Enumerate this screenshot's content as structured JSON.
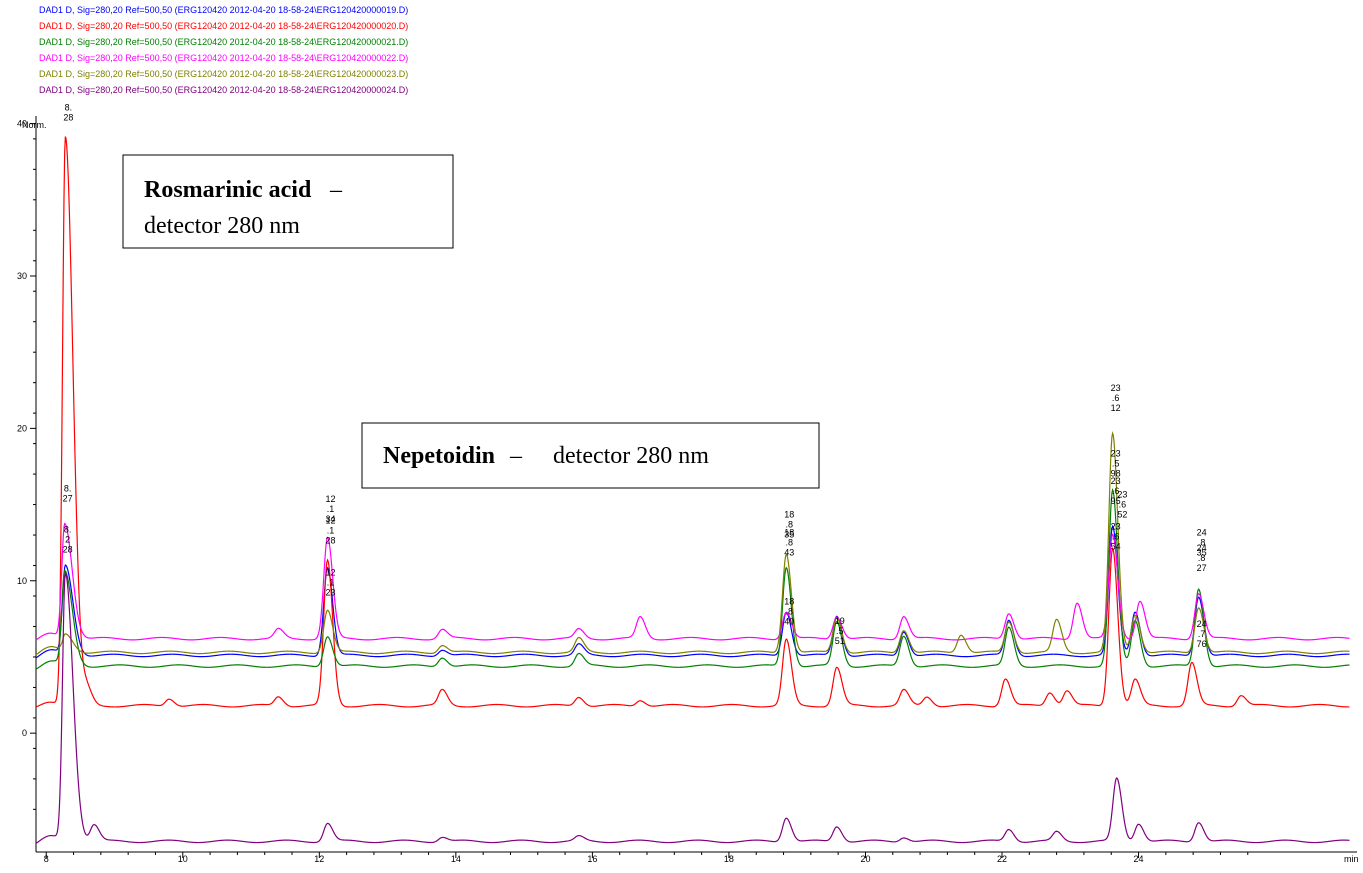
{
  "chart_data": {
    "type": "line",
    "xlabel": "min",
    "ylabel": "Norm.",
    "xlim": [
      7.85,
      27.2
    ],
    "ylim": [
      -7.8,
      40.5
    ],
    "x_ticks": [
      8,
      10,
      12,
      14,
      16,
      18,
      20,
      22,
      24
    ],
    "y_ticks": [
      0,
      10,
      20,
      30,
      40
    ],
    "grid": false,
    "legend_position": "top-left",
    "series": [
      {
        "name": "DAD1 D, Sig=280,20 Ref=500,50 (ERG120420 2012-04-20 18-58-24\\ERG120420000019.D)",
        "color": "#0000ff",
        "baseline": 5.1,
        "peaks": [
          [
            8.28,
            11
          ],
          [
            12.12,
            10.9
          ],
          [
            13.8,
            5.5
          ],
          [
            15.8,
            5.8
          ],
          [
            18.84,
            8.0
          ],
          [
            19.58,
            7.7
          ],
          [
            20.56,
            6.7
          ],
          [
            22.1,
            7.4
          ],
          [
            23.62,
            13.5
          ],
          [
            23.95,
            8.0
          ],
          [
            24.88,
            9.0
          ]
        ]
      },
      {
        "name": "DAD1 D, Sig=280,20 Ref=500,50 (ERG120420 2012-04-20 18-58-24\\ERG120420000020.D)",
        "color": "#ff0000",
        "baseline": 1.8,
        "peaks": [
          [
            8.28,
            39.2
          ],
          [
            8.6,
            2.8
          ],
          [
            9.8,
            2.3
          ],
          [
            11.4,
            2.4
          ],
          [
            12.12,
            11.3
          ],
          [
            13.8,
            2.8
          ],
          [
            15.8,
            2.4
          ],
          [
            16.7,
            2.2
          ],
          [
            18.84,
            6.1
          ],
          [
            19.58,
            4.3
          ],
          [
            20.56,
            2.8
          ],
          [
            20.9,
            2.4
          ],
          [
            22.05,
            3.6
          ],
          [
            22.7,
            2.7
          ],
          [
            22.95,
            2.8
          ],
          [
            23.62,
            12.2
          ],
          [
            23.95,
            3.5
          ],
          [
            24.78,
            4.6
          ],
          [
            25.5,
            2.5
          ]
        ]
      },
      {
        "name": "DAD1 D, Sig=280,20 Ref=500,50 (ERG120420 2012-04-20 18-58-24\\ERG120420000021.D)",
        "color": "#008000",
        "baseline": 4.4,
        "peaks": [
          [
            8.27,
            10.6
          ],
          [
            12.12,
            6.4
          ],
          [
            13.8,
            5.0
          ],
          [
            15.8,
            5.2
          ],
          [
            18.84,
            10.9
          ],
          [
            19.58,
            7.3
          ],
          [
            20.56,
            6.4
          ],
          [
            22.1,
            6.9
          ],
          [
            23.62,
            15.9
          ],
          [
            23.95,
            7.4
          ],
          [
            24.88,
            9.5
          ]
        ]
      },
      {
        "name": "DAD1 D, Sig=280,20 Ref=500,50 (ERG120420 2012-04-20 18-58-24\\ERG120420000022.D)",
        "color": "#ff00ff",
        "baseline": 6.2,
        "peaks": [
          [
            8.27,
            13.8
          ],
          [
            11.4,
            6.8
          ],
          [
            12.12,
            12.8
          ],
          [
            13.8,
            6.8
          ],
          [
            15.8,
            6.8
          ],
          [
            16.7,
            7.6
          ],
          [
            18.84,
            8.0
          ],
          [
            19.58,
            7.7
          ],
          [
            20.56,
            7.7
          ],
          [
            22.1,
            7.9
          ],
          [
            23.1,
            8.6
          ],
          [
            23.62,
            13.0
          ],
          [
            24.02,
            8.7
          ],
          [
            24.88,
            9.2
          ]
        ]
      },
      {
        "name": "DAD1 D, Sig=280,20 Ref=500,50 (ERG120420 2012-04-20 18-58-24\\ERG120420000023.D)",
        "color": "#808000",
        "baseline": 5.3,
        "peaks": [
          [
            8.28,
            6.5
          ],
          [
            12.12,
            8.1
          ],
          [
            13.8,
            5.8
          ],
          [
            15.8,
            6.2
          ],
          [
            18.84,
            11.8
          ],
          [
            19.58,
            7.6
          ],
          [
            20.56,
            6.8
          ],
          [
            21.4,
            6.5
          ],
          [
            22.1,
            7.3
          ],
          [
            22.8,
            7.4
          ],
          [
            23.62,
            19.6
          ],
          [
            23.95,
            7.8
          ],
          [
            24.88,
            8.3
          ]
        ]
      },
      {
        "name": "DAD1 D, Sig=280,20 Ref=500,50 (ERG120420 2012-04-20 18-58-24\\ERG120420000024.D)",
        "color": "#800080",
        "baseline": -7.1,
        "peaks": [
          [
            8.28,
            10.5
          ],
          [
            8.7,
            -6.0
          ],
          [
            12.12,
            -5.9
          ],
          [
            13.8,
            -6.8
          ],
          [
            15.8,
            -6.8
          ],
          [
            18.84,
            -5.5
          ],
          [
            19.58,
            -6.1
          ],
          [
            20.56,
            -6.8
          ],
          [
            22.1,
            -6.3
          ],
          [
            22.8,
            -6.5
          ],
          [
            23.68,
            -3.0
          ],
          [
            24.0,
            -5.9
          ],
          [
            24.88,
            -5.8
          ]
        ]
      }
    ],
    "peak_labels": [
      {
        "x": 8.28,
        "y": 40.2,
        "color": "#800000",
        "text": "8.\n28"
      },
      {
        "x": 8.27,
        "y": 15.2,
        "color": "#000000",
        "text": "8.\n27"
      },
      {
        "x": 8.27,
        "y": 12.5,
        "color": "#000000",
        "text": "8.\n2\n28"
      },
      {
        "x": 12.12,
        "y": 14.5,
        "color": "#000000",
        "text": "12\n.1\n34"
      },
      {
        "x": 12.12,
        "y": 13.1,
        "color": "#000000",
        "text": "12\n.1\n28"
      },
      {
        "x": 12.12,
        "y": 9.7,
        "color": "#000000",
        "text": "12\n.1\n23"
      },
      {
        "x": 18.84,
        "y": 13.5,
        "color": "#000000",
        "text": "18\n.8\n35"
      },
      {
        "x": 18.84,
        "y": 12.3,
        "color": "#000000",
        "text": "18\n.8\n43"
      },
      {
        "x": 18.84,
        "y": 7.8,
        "color": "#000000",
        "text": "18\n.8\n40"
      },
      {
        "x": 19.58,
        "y": 6.5,
        "color": "#000000",
        "text": "19\n.5\n51"
      },
      {
        "x": 23.62,
        "y": 21.8,
        "color": "#000000",
        "text": "23\n.6\n12"
      },
      {
        "x": 23.62,
        "y": 17.5,
        "color": "#000000",
        "text": "23\n.5\n98"
      },
      {
        "x": 23.62,
        "y": 15.7,
        "color": "#000000",
        "text": "23\n.6\n95"
      },
      {
        "x": 23.72,
        "y": 14.8,
        "color": "#000000",
        "text": "23\n.6\n52"
      },
      {
        "x": 23.62,
        "y": 12.7,
        "color": "#000000",
        "text": "23\n.6\n54"
      },
      {
        "x": 24.88,
        "y": 12.3,
        "color": "#000000",
        "text": "24\n.8\n35"
      },
      {
        "x": 24.88,
        "y": 11.3,
        "color": "#000000",
        "text": "24\n.8\n27"
      },
      {
        "x": 24.88,
        "y": 6.3,
        "color": "#000000",
        "text": "24\n.7\n76"
      }
    ]
  },
  "callouts": {
    "rosmarinic": {
      "title": "Rosmarinic acid",
      "dash": " –",
      "body": "detector 280 nm"
    },
    "nepetoidin": {
      "title": "Nepetoidin",
      "dash": " – ",
      "body": "detector 280 nm"
    }
  }
}
